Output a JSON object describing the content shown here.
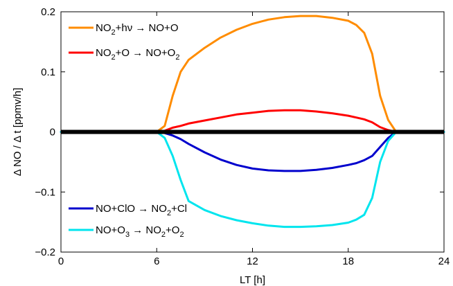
{
  "chart_data": {
    "type": "line",
    "xlabel": "LT [h]",
    "ylabel": "Δ NO / Δ t   [ppmv/h]",
    "xlim": [
      0,
      24
    ],
    "ylim": [
      -0.2,
      0.2
    ],
    "xticks": [
      0,
      6,
      12,
      18,
      24
    ],
    "xtick_labels": [
      "0",
      "6",
      "12",
      "18",
      "24"
    ],
    "yticks": [
      -0.2,
      -0.1,
      0,
      0.1,
      0.2
    ],
    "ytick_labels": [
      "−0.2",
      "−0.1",
      "0",
      "0.1",
      "0.2"
    ],
    "grid": false,
    "zero_line": {
      "y": 0,
      "color": "#000000"
    },
    "series": [
      {
        "name": "NO2+hν → NO+O",
        "legend_parts": [
          [
            "NO",
            ""
          ],
          [
            "2",
            "sub"
          ],
          [
            "+hν → NO+O",
            ""
          ]
        ],
        "color": "#ff8c00",
        "legend_position": "top-left",
        "x": [
          0,
          6,
          6.5,
          7,
          7.5,
          8,
          9,
          10,
          11,
          12,
          13,
          14,
          15,
          16,
          17,
          18,
          18.5,
          19,
          19.5,
          20,
          20.5,
          21,
          24
        ],
        "y": [
          0,
          0,
          0.01,
          0.06,
          0.1,
          0.12,
          0.14,
          0.157,
          0.17,
          0.18,
          0.187,
          0.191,
          0.193,
          0.193,
          0.19,
          0.185,
          0.178,
          0.165,
          0.13,
          0.06,
          0.02,
          0,
          0
        ]
      },
      {
        "name": "NO2+O → NO+O2",
        "legend_parts": [
          [
            "NO",
            ""
          ],
          [
            "2",
            "sub"
          ],
          [
            "+O → NO+O",
            ""
          ],
          [
            "2",
            "sub"
          ]
        ],
        "color": "#ff0000",
        "legend_position": "top-left",
        "x": [
          0,
          6,
          6.5,
          7,
          7.5,
          8,
          9,
          10,
          11,
          12,
          13,
          14,
          15,
          16,
          17,
          18,
          18.5,
          19,
          19.5,
          20,
          20.5,
          21,
          24
        ],
        "y": [
          0,
          0,
          0.002,
          0.007,
          0.01,
          0.014,
          0.019,
          0.024,
          0.029,
          0.032,
          0.035,
          0.036,
          0.036,
          0.034,
          0.031,
          0.027,
          0.024,
          0.021,
          0.016,
          0.008,
          0.003,
          0,
          0
        ]
      },
      {
        "name": "NO+ClO → NO2+Cl",
        "legend_parts": [
          [
            "NO+ClO → NO",
            ""
          ],
          [
            "2",
            "sub"
          ],
          [
            "+Cl",
            ""
          ]
        ],
        "color": "#0000cd",
        "legend_position": "bottom-left",
        "x": [
          0,
          6,
          6.5,
          7,
          7.5,
          8,
          9,
          10,
          11,
          12,
          13,
          14,
          15,
          16,
          17,
          18,
          18.5,
          19,
          19.5,
          20,
          20.5,
          21,
          24
        ],
        "y": [
          0,
          0,
          -0.002,
          -0.006,
          -0.012,
          -0.02,
          -0.034,
          -0.046,
          -0.055,
          -0.061,
          -0.064,
          -0.065,
          -0.065,
          -0.063,
          -0.06,
          -0.055,
          -0.052,
          -0.047,
          -0.04,
          -0.025,
          -0.01,
          0,
          0
        ]
      },
      {
        "name": "NO+O3 → NO2+O2",
        "legend_parts": [
          [
            "NO+O",
            ""
          ],
          [
            "3",
            "sub"
          ],
          [
            " → NO",
            ""
          ],
          [
            "2",
            "sub"
          ],
          [
            "+O",
            ""
          ],
          [
            "2",
            "sub"
          ]
        ],
        "color": "#00e5ee",
        "legend_position": "bottom-left",
        "x": [
          0,
          6,
          6.5,
          7,
          7.5,
          8,
          9,
          10,
          11,
          12,
          13,
          14,
          15,
          16,
          17,
          18,
          18.5,
          19,
          19.5,
          20,
          20.5,
          21,
          24
        ],
        "y": [
          0,
          0,
          -0.01,
          -0.04,
          -0.08,
          -0.115,
          -0.13,
          -0.14,
          -0.147,
          -0.152,
          -0.156,
          -0.158,
          -0.158,
          -0.157,
          -0.155,
          -0.151,
          -0.146,
          -0.138,
          -0.11,
          -0.05,
          -0.015,
          0,
          0
        ]
      }
    ]
  }
}
